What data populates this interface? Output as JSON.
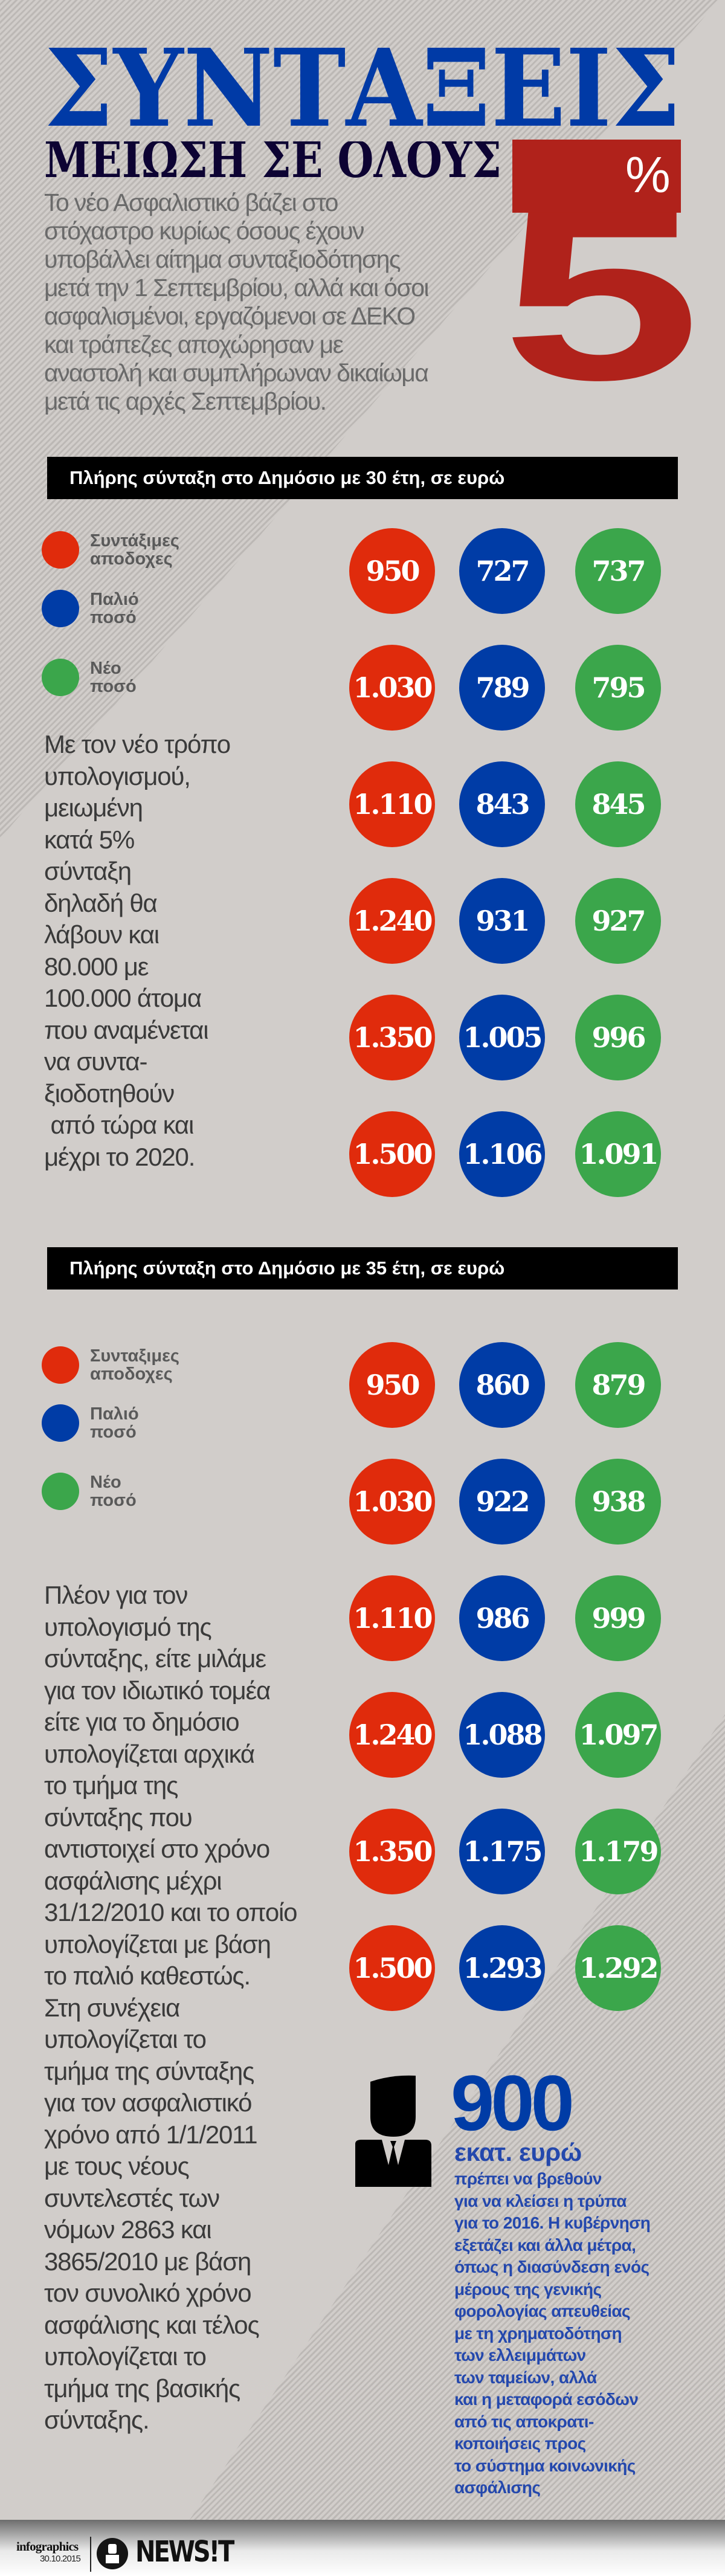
{
  "colors": {
    "red": "#e02b0c",
    "blue": "#003ca6",
    "green": "#3ba64b",
    "title_blue": "#003aa6",
    "subtitle_navy": "#0d0333",
    "accent_red": "#b0221b",
    "note_blue": "#2448ad"
  },
  "header": {
    "title": "ΣΥΝΤΑΞΕΙΣ",
    "subtitle": "ΜΕΙΩΣΗ ΣΕ ΟΛΟΥΣ",
    "big_number": "5",
    "percent": "%"
  },
  "intro": [
    "Το νέο Ασφαλιστικό βάζει στο",
    "στόχαστρο κυρίως όσους έχουν",
    "υποβάλλει αίτημα συνταξιοδότησης",
    "μετά την 1 Σεπτεμβρίου, αλλά και όσοι",
    "ασφαλισμένοι, εργαζόμενοι σε ΔΕΚΟ",
    "και τράπεζες αποχώρησαν με",
    "αναστολή και συμπλήρωναν δικαίωμα",
    "μετά τις αρχές Σεπτεμβρίου."
  ],
  "sections": [
    {
      "title": "Πλήρης σύνταξη στο Δημόσιο με 30 έτη, σε ευρώ",
      "legend": [
        {
          "line1": "Συντάξιμες",
          "line2": "αποδοχες",
          "color": "red"
        },
        {
          "line1": "Παλιό",
          "line2": "ποσό",
          "color": "blue"
        },
        {
          "line1": "Νέο",
          "line2": "ποσό",
          "color": "green"
        }
      ],
      "rows": [
        [
          "950",
          "727",
          "737"
        ],
        [
          "1.030",
          "789",
          "795"
        ],
        [
          "1.110",
          "843",
          "845"
        ],
        [
          "1.240",
          "931",
          "927"
        ],
        [
          "1.350",
          "1.005",
          "996"
        ],
        [
          "1.500",
          "1.106",
          "1.091"
        ]
      ],
      "text": [
        "Με τον νέο τρόπο",
        "υπολογισμού,",
        "μειωμένη",
        "κατά 5%",
        "σύνταξη",
        "δηλαδή θα",
        "λάβουν και",
        "80.000 με",
        "100.000 άτομα",
        "που αναμένεται",
        "να συντα-",
        "ξιοδοτηθούν",
        " από τώρα και",
        "μέχρι το 2020."
      ]
    },
    {
      "title": "Πλήρης σύνταξη στο Δημόσιο με 35 έτη, σε ευρώ",
      "legend": [
        {
          "line1": "Συνταξιμες",
          "line2": "αποδοχες",
          "color": "red"
        },
        {
          "line1": "Παλιό",
          "line2": "ποσό",
          "color": "blue"
        },
        {
          "line1": "Νέο",
          "line2": "ποσό",
          "color": "green"
        }
      ],
      "rows": [
        [
          "950",
          "860",
          "879"
        ],
        [
          "1.030",
          "922",
          "938"
        ],
        [
          "1.110",
          "986",
          "999"
        ],
        [
          "1.240",
          "1.088",
          "1.097"
        ],
        [
          "1.350",
          "1.175",
          "1.179"
        ],
        [
          "1.500",
          "1.293",
          "1.292"
        ]
      ],
      "text": [
        "Πλέον για τον",
        "υπολογισμό της",
        "σύνταξης, είτε μιλάμε",
        "για τον ιδιωτικό τομέα",
        "είτε για το δημόσιο",
        "υπολογίζεται αρχικά",
        "το τμήμα της",
        "σύνταξης που",
        "αντιστοιχεί στο χρόνο",
        "ασφάλισης μέχρι",
        "31/12/2010 και το οποίο",
        "υπολογίζεται με βάση",
        "το παλιό καθεστώς.",
        "Στη συνέχεια",
        "υπολογίζεται το",
        "τμήμα της σύνταξης",
        "για τον ασφαλιστικό",
        "χρόνο από 1/1/2011",
        "με τους νέους",
        "συντελεστές των",
        "νόμων 2863 και",
        "3865/2010 με βάση",
        "τον συνολικό χρόνο",
        "ασφάλισης και τέλος",
        "υπολογίζεται το",
        "τμήμα της βασικής",
        "σύνταξης."
      ]
    }
  ],
  "callout": {
    "number": "900",
    "unit": "εκατ. ευρώ",
    "icon": "businessman-icon",
    "lines": [
      "πρέπει να βρεθούν",
      "για να κλείσει η τρύπα",
      "για το 2016. Η κυβέρνηση",
      "εξετάζει και άλλα μέτρα,",
      "όπως η διασύνδεση ενός",
      "μέρους της γενικής",
      "φορολογίας απευθείας",
      "με τη χρηματοδότηση",
      "των ελλειμμάτων",
      "των ταμείων, αλλά",
      "και η μεταφορά εσόδων",
      "από τις αποκρατι-",
      "κοποιήσεις προς",
      "το σύστημα κοινωνικής",
      "ασφάλισης"
    ]
  },
  "footer": {
    "label": "infographics",
    "date": "30.10.2015",
    "brand": "NEWS!T"
  }
}
